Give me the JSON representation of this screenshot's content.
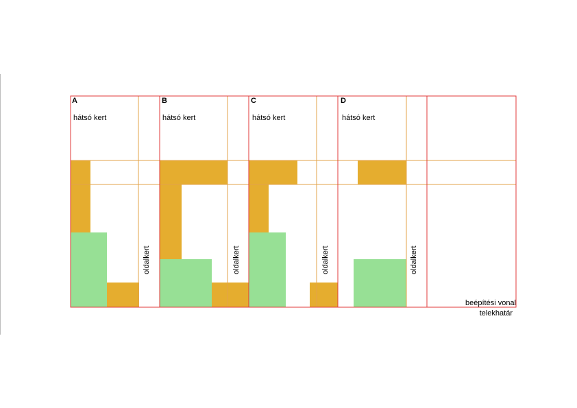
{
  "colors": {
    "plot_border": "#e03a3a",
    "guide_line": "#e3a34a",
    "building": "#e5ad2f",
    "garden": "#97e095",
    "background": "#ffffff"
  },
  "plots": [
    {
      "letter": "A",
      "rear_garden_label": "hátsó kert",
      "side_garden_label": "oldalkert"
    },
    {
      "letter": "B",
      "rear_garden_label": "hátsó kert",
      "side_garden_label": "oldalkert"
    },
    {
      "letter": "C",
      "rear_garden_label": "hátsó kert",
      "side_garden_label": "oldalkert"
    },
    {
      "letter": "D",
      "rear_garden_label": "hátsó kert",
      "side_garden_label": "oldalkert"
    }
  ],
  "legend": {
    "building_line": "beépítési vonal",
    "plot_boundary": "telekhatár"
  }
}
